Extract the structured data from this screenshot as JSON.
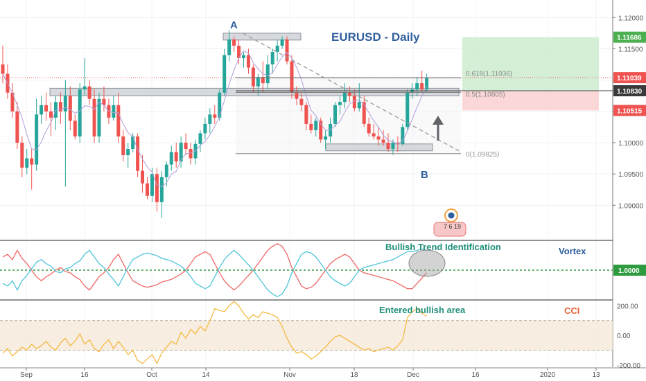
{
  "chart_data": [
    {
      "type": "candlestick",
      "title": "EURUSD - Daily",
      "ylim": [
        1.0845,
        1.1228
      ],
      "yticks": [
        "1.12000",
        "1.11500",
        "1.11000",
        "1.10500",
        "1.10000",
        "1.09500",
        "1.09000"
      ],
      "xticks": [
        "Sep",
        "16",
        "Oct",
        "14",
        "Nov",
        "18",
        "Dec",
        "16",
        "2020",
        "13"
      ],
      "price_badges": [
        {
          "value": "1.11686",
          "color": "#4caf50"
        },
        {
          "value": "1.11039",
          "color": "#ef5350"
        },
        {
          "value": "1.10830",
          "color": "#3a3a3a"
        },
        {
          "value": "1.10515",
          "color": "#ef5350"
        }
      ],
      "fib_levels": [
        {
          "label": "0.618(1.11036)",
          "value": 1.11036
        },
        {
          "label": "0.5(1.10805)",
          "value": 1.10805
        },
        {
          "label": "0(1.09825)",
          "value": 1.09825
        }
      ],
      "annotations": {
        "point_a": "A",
        "point_b": "B",
        "event_badge": "7 6 19"
      },
      "candles": [
        [
          1.1125,
          1.1155,
          1.1095,
          1.111
        ],
        [
          1.111,
          1.1125,
          1.107,
          1.108
        ],
        [
          1.108,
          1.1095,
          1.104,
          1.105
        ],
        [
          1.105,
          1.1065,
          1.099,
          1.1
        ],
        [
          1.1,
          1.101,
          1.0945,
          1.096
        ],
        [
          1.096,
          1.099,
          1.095,
          1.0975
        ],
        [
          1.0975,
          1.099,
          1.0925,
          1.0965
        ],
        [
          1.0965,
          1.107,
          1.0955,
          1.1045
        ],
        [
          1.1045,
          1.1075,
          1.103,
          1.106
        ],
        [
          1.106,
          1.108,
          1.1035,
          1.105
        ],
        [
          1.105,
          1.1065,
          1.101,
          1.104
        ],
        [
          1.104,
          1.1075,
          1.102,
          1.1065
        ],
        [
          1.1065,
          1.108,
          1.103,
          1.105
        ],
        [
          1.105,
          1.11,
          1.093,
          1.1075
        ],
        [
          1.1075,
          1.109,
          1.102,
          1.1035
        ],
        [
          1.1035,
          1.1045,
          1.1005,
          1.101
        ],
        [
          1.101,
          1.1095,
          1.1,
          1.1085
        ],
        [
          1.1085,
          1.1135,
          1.1075,
          1.109
        ],
        [
          1.109,
          1.11,
          1.106,
          1.107
        ],
        [
          1.107,
          1.1085,
          1.1,
          1.101
        ],
        [
          1.101,
          1.108,
          1.1,
          1.107
        ],
        [
          1.107,
          1.109,
          1.105,
          1.106
        ],
        [
          1.106,
          1.107,
          1.103,
          1.104
        ],
        [
          1.104,
          1.1075,
          1.1035,
          1.106
        ],
        [
          1.106,
          1.108,
          1.1,
          1.101
        ],
        [
          1.101,
          1.102,
          1.097,
          1.098
        ],
        [
          1.098,
          1.1,
          1.096,
          1.099
        ],
        [
          1.099,
          1.1015,
          1.0985,
          1.101
        ],
        [
          1.101,
          1.1015,
          1.0945,
          1.0955
        ],
        [
          1.0955,
          1.098,
          1.092,
          1.0935
        ],
        [
          1.0935,
          1.0945,
          1.091,
          1.0915
        ],
        [
          1.0915,
          1.096,
          1.0905,
          1.095
        ],
        [
          1.095,
          1.096,
          1.089,
          1.0905
        ],
        [
          1.0905,
          1.0955,
          1.088,
          1.0945
        ],
        [
          1.0945,
          1.097,
          1.093,
          1.0965
        ],
        [
          1.0965,
          1.0995,
          1.0955,
          1.0985
        ],
        [
          1.0985,
          1.1,
          1.096,
          1.097
        ],
        [
          1.097,
          1.101,
          1.096,
          1.1
        ],
        [
          1.1,
          1.1015,
          1.098,
          1.099
        ],
        [
          1.099,
          1.1,
          1.0965,
          1.0975
        ],
        [
          1.0975,
          1.1005,
          1.0965,
          1.0998
        ],
        [
          1.0998,
          1.102,
          1.0985,
          1.1015
        ],
        [
          1.1015,
          1.104,
          1.1005,
          1.103
        ],
        [
          1.103,
          1.1055,
          1.1015,
          1.1045
        ],
        [
          1.1045,
          1.106,
          1.103,
          1.104
        ],
        [
          1.104,
          1.1085,
          1.1035,
          1.108
        ],
        [
          1.108,
          1.115,
          1.1075,
          1.114
        ],
        [
          1.114,
          1.118,
          1.113,
          1.1165
        ],
        [
          1.1165,
          1.117,
          1.1145,
          1.1155
        ],
        [
          1.1155,
          1.1165,
          1.1125,
          1.1135
        ],
        [
          1.1135,
          1.1145,
          1.112,
          1.114
        ],
        [
          1.114,
          1.115,
          1.111,
          1.112
        ],
        [
          1.112,
          1.1125,
          1.108,
          1.109
        ],
        [
          1.109,
          1.111,
          1.1075,
          1.1105
        ],
        [
          1.1105,
          1.113,
          1.108,
          1.1095
        ],
        [
          1.1095,
          1.114,
          1.1085,
          1.1125
        ],
        [
          1.1125,
          1.115,
          1.111,
          1.1145
        ],
        [
          1.1145,
          1.1165,
          1.113,
          1.1155
        ],
        [
          1.1155,
          1.117,
          1.115,
          1.1165
        ],
        [
          1.1165,
          1.117,
          1.1125,
          1.113
        ],
        [
          1.113,
          1.114,
          1.107,
          1.108
        ],
        [
          1.108,
          1.109,
          1.106,
          1.107
        ],
        [
          1.107,
          1.108,
          1.105,
          1.106
        ],
        [
          1.106,
          1.1065,
          1.102,
          1.103
        ],
        [
          1.103,
          1.1045,
          1.1015,
          1.102
        ],
        [
          1.102,
          1.104,
          1.101,
          1.1035
        ],
        [
          1.1035,
          1.104,
          1.1,
          1.1005
        ],
        [
          1.1005,
          1.102,
          1.099,
          1.101
        ],
        [
          1.101,
          1.104,
          1.1,
          1.103
        ],
        [
          1.103,
          1.1065,
          1.1025,
          1.106
        ],
        [
          1.106,
          1.1075,
          1.1045,
          1.1065
        ],
        [
          1.1065,
          1.1095,
          1.1055,
          1.108
        ],
        [
          1.108,
          1.109,
          1.1065,
          1.1075
        ],
        [
          1.1075,
          1.1085,
          1.105,
          1.1055
        ],
        [
          1.1055,
          1.1095,
          1.105,
          1.1065
        ],
        [
          1.1065,
          1.1075,
          1.1025,
          1.103
        ],
        [
          1.103,
          1.104,
          1.101,
          1.1015
        ],
        [
          1.1015,
          1.103,
          1.1005,
          1.101
        ],
        [
          1.101,
          1.1025,
          1.0995,
          1.1005
        ],
        [
          1.1005,
          1.102,
          1.0995,
          1.1
        ],
        [
          1.1,
          1.1015,
          1.0985,
          1.099
        ],
        [
          1.099,
          1.1005,
          1.098,
          1.1
        ],
        [
          1.1,
          1.101,
          1.0985,
          1.0998
        ],
        [
          1.0998,
          1.103,
          1.0995,
          1.1025
        ],
        [
          1.1025,
          1.1085,
          1.102,
          1.108
        ],
        [
          1.108,
          1.1095,
          1.107,
          1.1085
        ],
        [
          1.1085,
          1.1105,
          1.1075,
          1.1095
        ],
        [
          1.1095,
          1.1115,
          1.108,
          1.1085
        ],
        [
          1.1085,
          1.111,
          1.108,
          1.1104
        ]
      ]
    },
    {
      "type": "line",
      "title": "Vortex",
      "annotation": "Bullish Trend Identification",
      "reference_label": "1.0000",
      "series": [
        {
          "color": "#f0716f",
          "values": [
            1.1,
            1.12,
            1.08,
            1.15,
            1.09,
            1.05,
            1.0,
            0.95,
            0.92,
            0.95,
            0.97,
            1.0,
            1.02,
            0.99,
            0.98,
            0.95,
            0.93,
            0.88,
            0.85,
            0.9,
            0.95,
            0.98,
            1.02,
            1.08,
            1.12,
            1.05,
            0.98,
            0.92,
            0.9,
            0.88,
            0.87,
            0.88,
            0.89,
            0.91,
            0.92,
            0.93,
            0.95,
            0.97,
            1.0,
            1.05,
            1.1,
            1.12,
            1.14,
            1.12,
            1.05,
            0.98,
            0.92,
            0.88,
            0.85,
            0.88,
            0.92,
            0.96,
            1.0,
            1.05,
            1.1,
            1.15,
            1.18,
            1.2,
            1.18,
            1.12,
            1.02,
            0.95,
            0.88,
            0.86,
            0.87,
            0.9,
            0.95,
            1.0,
            1.05,
            1.08,
            1.1,
            1.12,
            1.1,
            1.05,
            1.0,
            0.98,
            0.97,
            0.96,
            0.95,
            0.94,
            0.93,
            0.92,
            0.9,
            0.88,
            0.86,
            0.86,
            0.9,
            0.94,
            0.98
          ]
        },
        {
          "color": "#5bc8dc",
          "values": [
            0.9,
            0.88,
            0.92,
            0.85,
            0.92,
            0.96,
            1.01,
            1.06,
            1.08,
            1.05,
            1.03,
            0.99,
            0.98,
            1.01,
            1.02,
            1.05,
            1.07,
            1.12,
            1.15,
            1.1,
            1.05,
            1.02,
            0.97,
            0.93,
            0.88,
            0.95,
            1.02,
            1.08,
            1.1,
            1.12,
            1.13,
            1.12,
            1.11,
            1.09,
            1.08,
            1.07,
            1.05,
            1.03,
            1.0,
            0.95,
            0.9,
            0.88,
            0.86,
            0.88,
            0.95,
            1.02,
            1.08,
            1.12,
            1.15,
            1.12,
            1.08,
            1.04,
            1.0,
            0.95,
            0.9,
            0.85,
            0.82,
            0.8,
            0.82,
            0.88,
            0.98,
            1.05,
            1.12,
            1.14,
            1.13,
            1.1,
            1.05,
            1.0,
            0.95,
            0.92,
            0.9,
            0.88,
            0.9,
            0.95,
            1.0,
            1.02,
            1.03,
            1.04,
            1.05,
            1.06,
            1.07,
            1.08,
            1.1,
            1.12,
            1.14,
            1.14,
            1.15,
            1.16,
            1.15
          ]
        }
      ]
    },
    {
      "type": "line",
      "title": "CCI",
      "annotation": "Entered bullish area",
      "yticks": [
        "200.00",
        "0.00",
        "-200.00"
      ],
      "values": [
        -120,
        -90,
        -140,
        -110,
        -80,
        -100,
        -60,
        -90,
        -70,
        -40,
        -80,
        -100,
        -50,
        -20,
        -70,
        -40,
        10,
        -60,
        -30,
        -90,
        -110,
        -60,
        -30,
        -90,
        -40,
        -80,
        -130,
        -100,
        -170,
        -190,
        -160,
        -130,
        -190,
        -120,
        -80,
        -40,
        -60,
        20,
        -20,
        40,
        10,
        60,
        30,
        100,
        180,
        170,
        160,
        200,
        230,
        200,
        150,
        110,
        140,
        120,
        160,
        150,
        140,
        120,
        60,
        -20,
        -80,
        -120,
        -110,
        -130,
        -160,
        -140,
        -110,
        -80,
        -40,
        -10,
        0,
        -20,
        -40,
        -60,
        -80,
        -100,
        -90,
        -110,
        -100,
        -90,
        -80,
        -100,
        -70,
        -30,
        120,
        160,
        180,
        150,
        130
      ]
    }
  ]
}
